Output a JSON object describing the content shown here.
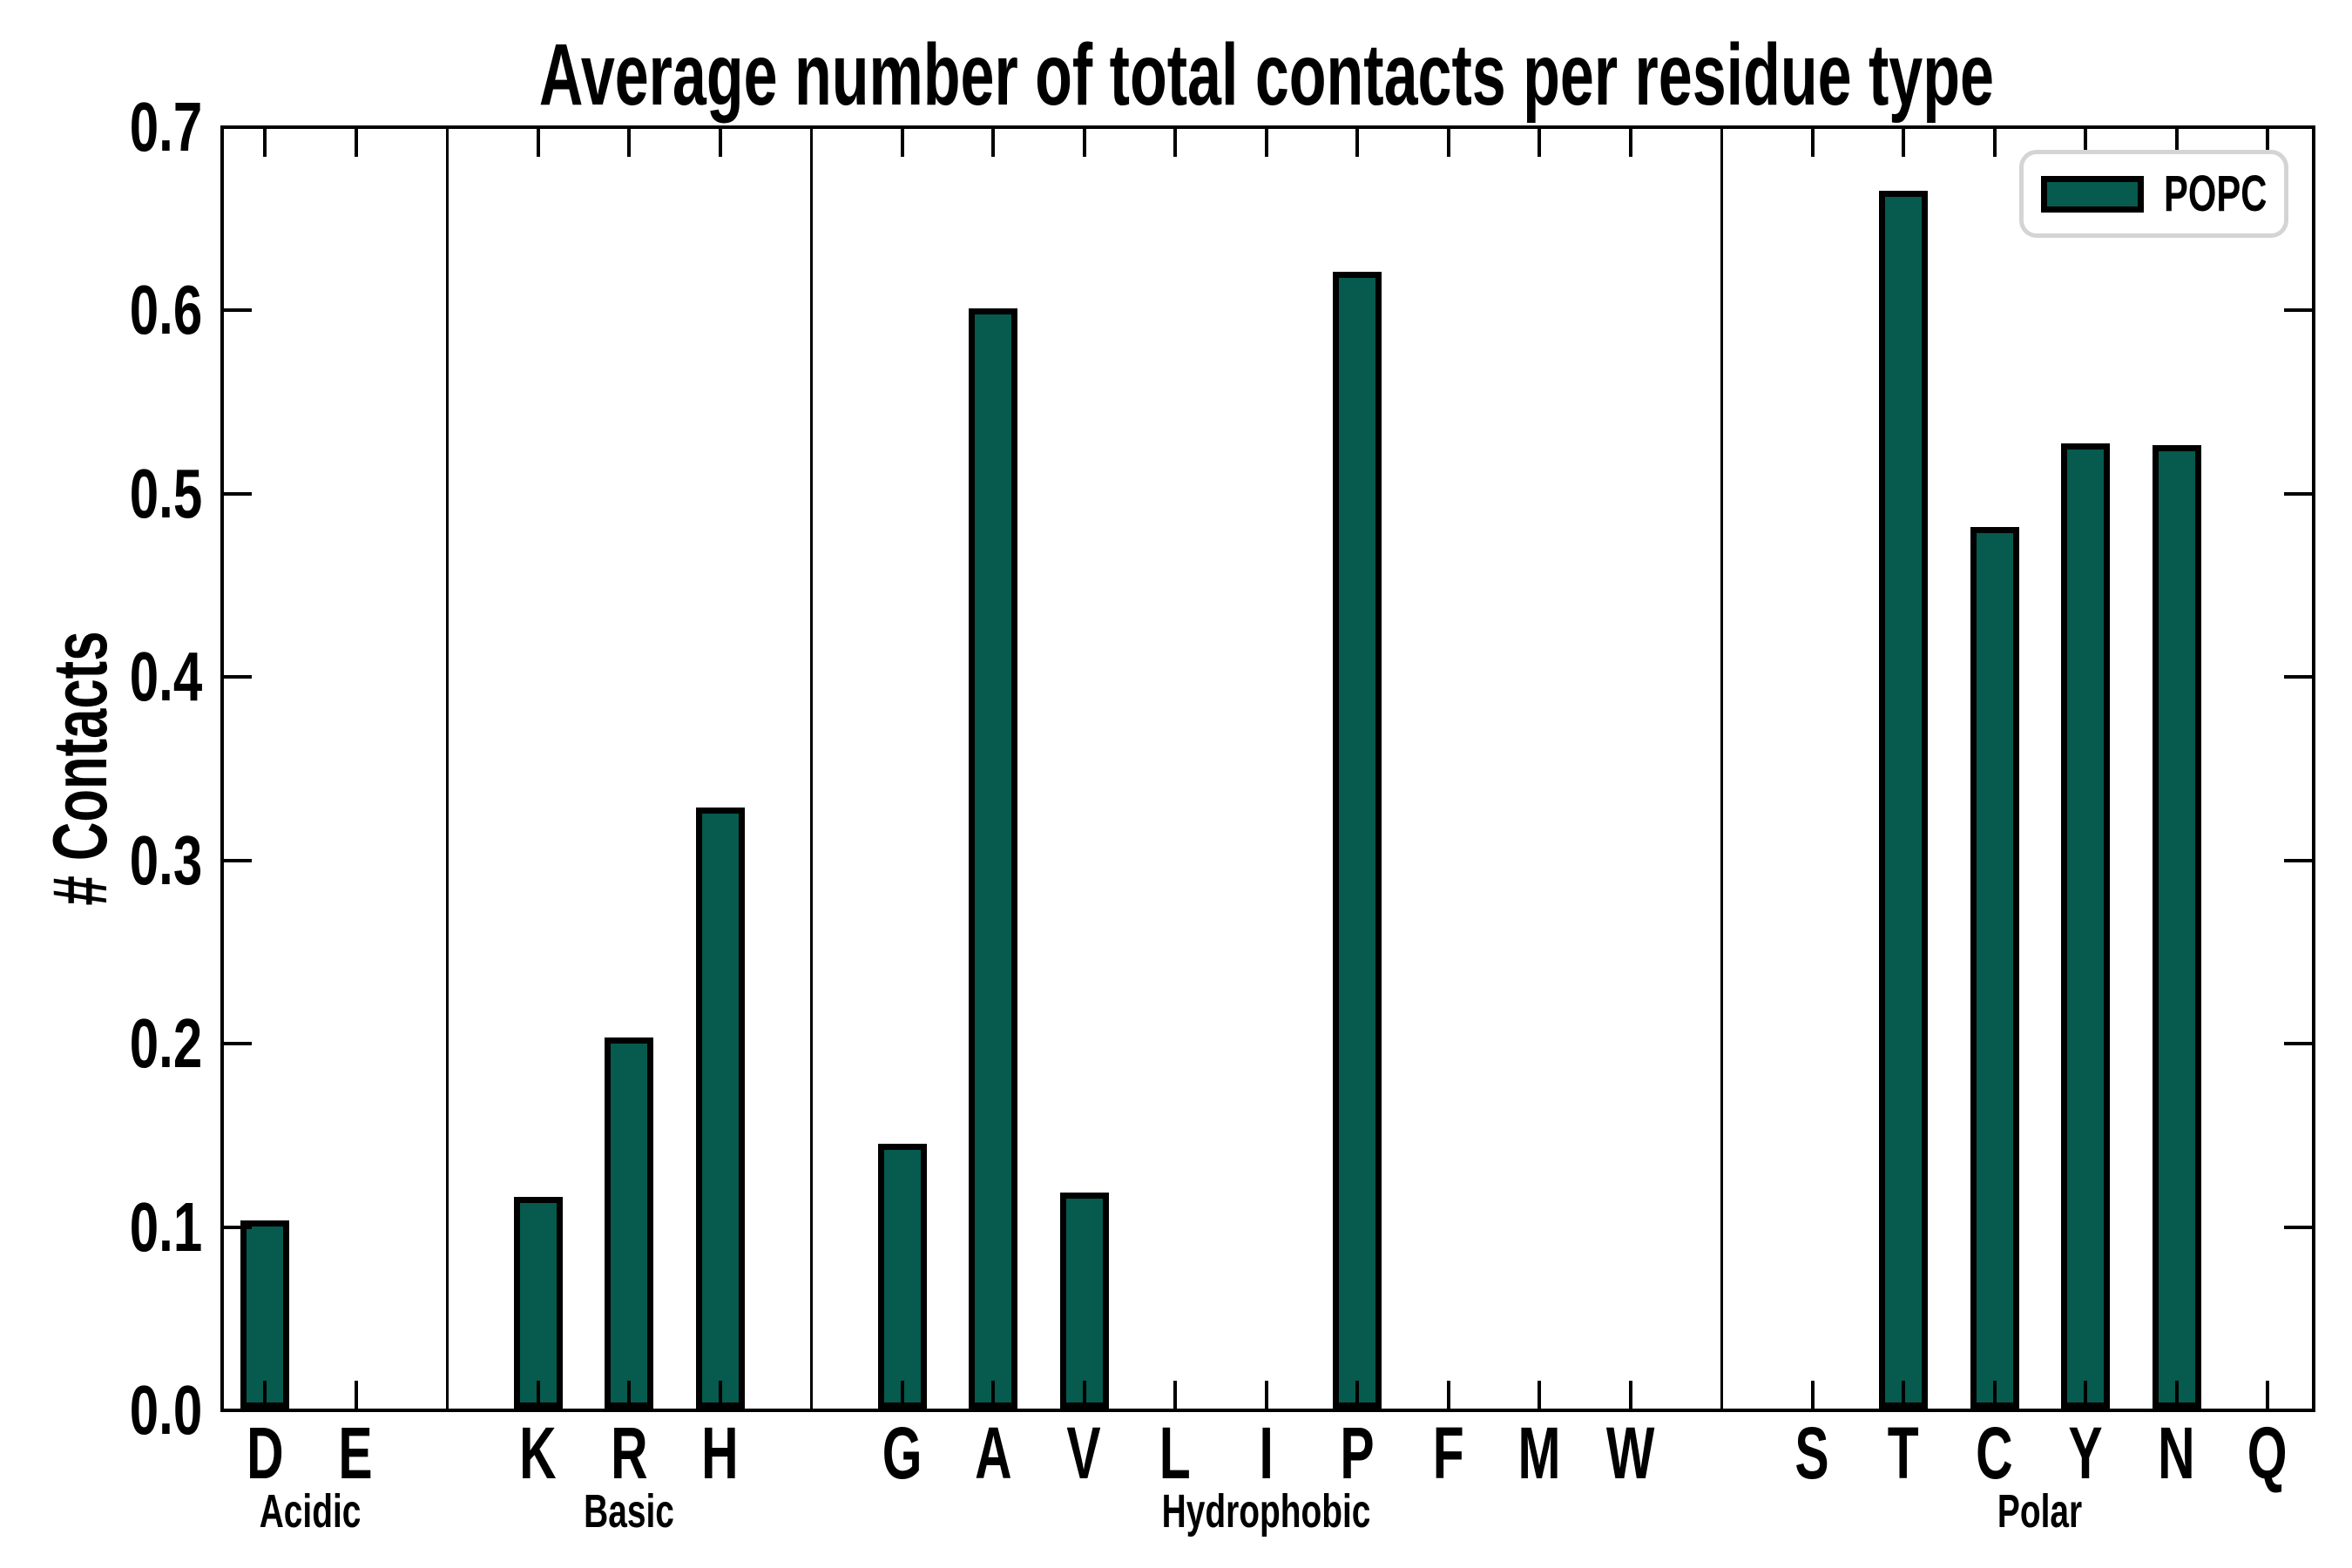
{
  "figure": {
    "background": "#ffffff"
  },
  "chart_data": {
    "type": "bar",
    "title": "Average number of total contacts per residue type",
    "ylabel": "# Contacts",
    "xlabel": "",
    "ylim": [
      0.0,
      0.7
    ],
    "yticks": [
      "0.0",
      "0.1",
      "0.2",
      "0.3",
      "0.4",
      "0.5",
      "0.6",
      "0.7"
    ],
    "grid": false,
    "legend": {
      "label": "POPC",
      "position": "upper-right"
    },
    "colors": {
      "bar_fill": "#065a4e",
      "bar_edge": "#000000",
      "axis": "#000000",
      "text": "#000000",
      "legend_border": "#d4d4d4"
    },
    "groups": [
      {
        "name": "Acidic",
        "categories": [
          "D",
          "E"
        ],
        "values": [
          0.103,
          0.0
        ]
      },
      {
        "name": "Basic",
        "categories": [
          "K",
          "R",
          "H"
        ],
        "values": [
          0.116,
          0.203,
          0.329
        ]
      },
      {
        "name": "Hydrophobic",
        "categories": [
          "G",
          "A",
          "V",
          "L",
          "I",
          "P",
          "F",
          "M",
          "W"
        ],
        "values": [
          0.145,
          0.602,
          0.118,
          0.0,
          0.0,
          0.622,
          0.0,
          0.0,
          0.0
        ]
      },
      {
        "name": "Polar",
        "categories": [
          "S",
          "T",
          "C",
          "Y",
          "N",
          "Q"
        ],
        "values": [
          0.0,
          0.666,
          0.482,
          0.528,
          0.527,
          0.0
        ]
      }
    ]
  }
}
